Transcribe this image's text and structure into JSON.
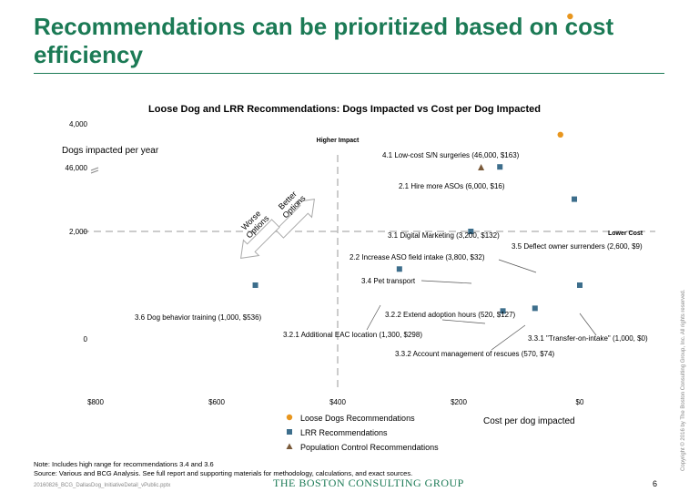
{
  "title": "Recommendations can be prioritized based on cost efficiency",
  "chart_data": {
    "type": "scatter",
    "title": "Loose Dog and LRR Recommendations: Dogs Impacted vs Cost per Dog Impacted",
    "xlabel": "Cost per dog impacted",
    "ylabel": "Dogs impacted per year",
    "x_reversed": true,
    "xlim": [
      800,
      0
    ],
    "x_ticks": [
      "$800",
      "$600",
      "$400",
      "$200",
      "$0"
    ],
    "y_ticks": [
      "0",
      "2,000",
      "4,000",
      "46,000"
    ],
    "y_axis_break": true,
    "ref_lines": {
      "x": 400,
      "y": 2000
    },
    "higher_impact_label": "Higher Impact",
    "lower_cost_label": "Lower Cost",
    "better_label": "Better Options",
    "worse_label": "Worse Options",
    "series": [
      {
        "name": "Loose Dogs Recommendations",
        "marker": "circle",
        "color": "#e8961e"
      },
      {
        "name": "LRR Recommendations",
        "marker": "square",
        "color": "#3d6e8c"
      },
      {
        "name": "Population Control Recommendations",
        "marker": "triangle",
        "color": "#7a5a3a"
      }
    ],
    "points": [
      {
        "label": "4.1 Low-cost S/N surgeries (46,000, $163)",
        "series": 2,
        "dogs": 46000,
        "cost": 163
      },
      {
        "label": "2.1 Hire more ASOs (6,000, $16)",
        "series": 0,
        "dogs": 6000,
        "cost": 16
      },
      {
        "label": "3.1 Digital Marketing (3,200, $132)",
        "series": 1,
        "dogs": 3200,
        "cost": 132
      },
      {
        "label": "3.5 Deflect owner surrenders (2,600, $9)",
        "series": 1,
        "dogs": 2600,
        "cost": 9
      },
      {
        "label": "2.2 Increase ASO field intake (3,800, $32)",
        "series": 0,
        "dogs": 3800,
        "cost": 32
      },
      {
        "label": "3.4 Pet transport",
        "series": 1,
        "dogs": 2000,
        "cost": 180
      },
      {
        "label": "3.6 Dog behavior training (1,000, $536)",
        "series": 1,
        "dogs": 1000,
        "cost": 536
      },
      {
        "label": "3.2.2 Extend adoption hours (520, $127)",
        "series": 1,
        "dogs": 520,
        "cost": 127
      },
      {
        "label": "3.2.1 Additional EAC location (1,300, $298)",
        "series": 1,
        "dogs": 1300,
        "cost": 298
      },
      {
        "label": "3.3.1 \"Transfer-on-intake\" (1,000, $0)",
        "series": 1,
        "dogs": 1000,
        "cost": 0
      },
      {
        "label": "3.3.2 Account management of rescues (570, $74)",
        "series": 1,
        "dogs": 570,
        "cost": 74
      }
    ]
  },
  "note_line1": "Note: Includes high range for recommendations 3.4 and 3.6",
  "note_line2": "Source: Various and BCG Analysis. See full report and supporting materials for methodology, calculations, and exact sources.",
  "footer_file": "20160826_BCG_DallasDog_InitiativeDetail_vPublic.pptx",
  "footer_logo": "THE BOSTON CONSULTING GROUP",
  "page_number": "6",
  "copyright": "Copyright © 2016 by The Boston Consulting Group, Inc. All rights reserved."
}
